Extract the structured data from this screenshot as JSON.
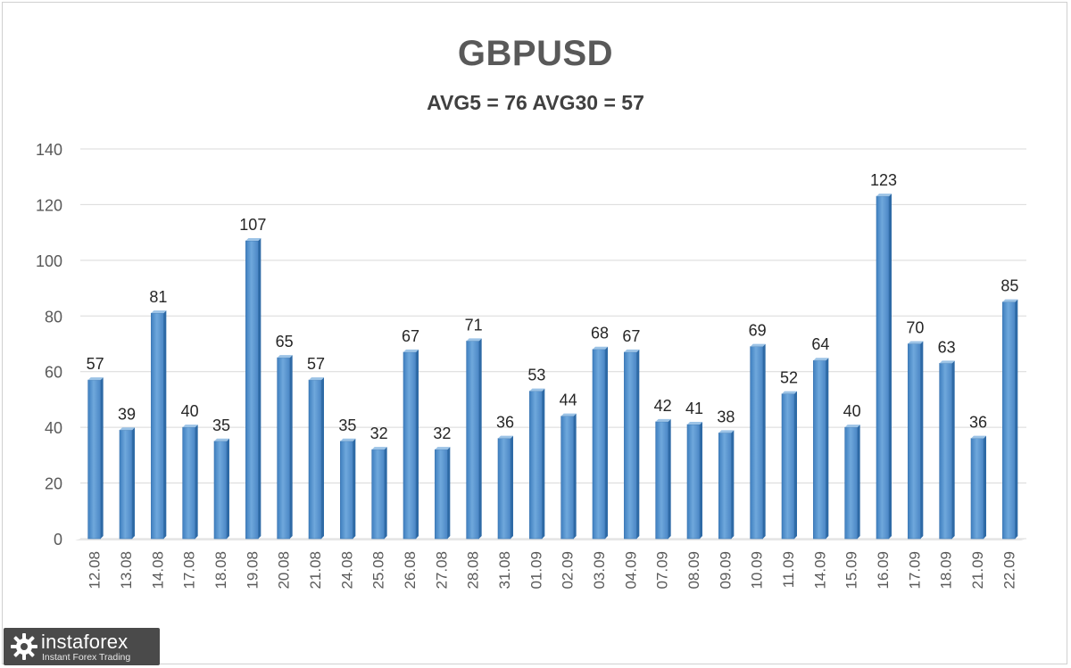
{
  "chart_data": {
    "type": "bar",
    "title": "GBPUSD",
    "subtitle": "AVG5 = 76 AVG30 = 57",
    "xlabel": "",
    "ylabel": "",
    "ylim": [
      0,
      140
    ],
    "yticks": [
      0,
      20,
      40,
      60,
      80,
      100,
      120,
      140
    ],
    "grid": true,
    "legend": "none",
    "bar_color": "#5b9bd5",
    "categories": [
      "12.08",
      "13.08",
      "14.08",
      "17.08",
      "18.08",
      "19.08",
      "20.08",
      "21.08",
      "24.08",
      "25.08",
      "26.08",
      "27.08",
      "28.08",
      "31.08",
      "01.09",
      "02.09",
      "03.09",
      "04.09",
      "07.09",
      "08.09",
      "09.09",
      "10.09",
      "11.09",
      "14.09",
      "15.09",
      "16.09",
      "17.09",
      "18.09",
      "21.09",
      "22.09"
    ],
    "values": [
      57,
      39,
      81,
      40,
      35,
      107,
      65,
      57,
      35,
      32,
      67,
      32,
      71,
      36,
      53,
      44,
      68,
      67,
      42,
      41,
      38,
      69,
      52,
      64,
      40,
      123,
      70,
      63,
      36,
      85
    ]
  },
  "logo": {
    "name": "instaforex",
    "tagline": "Instant Forex Trading",
    "icon": "gear-icon"
  }
}
